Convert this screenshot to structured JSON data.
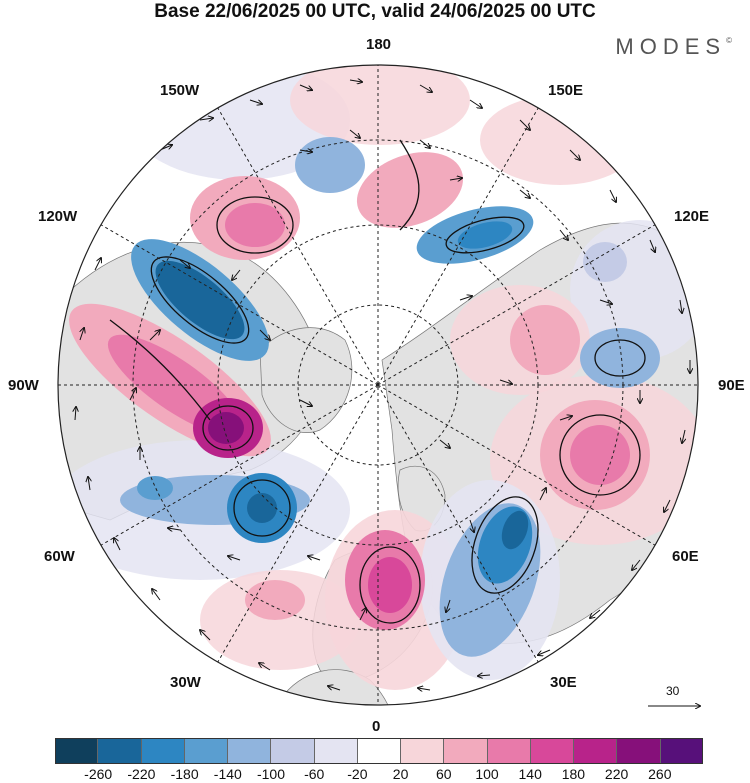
{
  "header": {
    "title": "Base 22/06/2025 00 UTC, valid 24/06/2025 00 UTC",
    "brand": "MODES",
    "brand_mark": "©"
  },
  "map": {
    "longitude_labels": {
      "top": "180",
      "bottom": "0",
      "left": "90W",
      "right": "90E",
      "upper_left": "150W",
      "upper_right": "150E",
      "mid_upper_left": "120W",
      "mid_upper_right": "120E",
      "lower_left": "60W",
      "lower_right": "60E",
      "bottom_left": "30W",
      "bottom_right": "30E"
    },
    "reference_vector": {
      "label": "30"
    },
    "land_color": "#e0e0e0",
    "ocean_color": "#ffffff"
  },
  "legend": {
    "colors": [
      "#0f3f5c",
      "#19669a",
      "#2d86c2",
      "#5a9ed0",
      "#90b4dd",
      "#c4cbe6",
      "#e4e4f2",
      "#ffffff",
      "#f7d6da",
      "#f2aabd",
      "#e87aaa",
      "#d8489a",
      "#b8238a",
      "#86107a",
      "#57107a"
    ],
    "tick_labels": [
      "-260",
      "-220",
      "-180",
      "-140",
      "-100",
      "-60",
      "-20",
      "20",
      "60",
      "100",
      "140",
      "180",
      "220",
      "260"
    ]
  }
}
